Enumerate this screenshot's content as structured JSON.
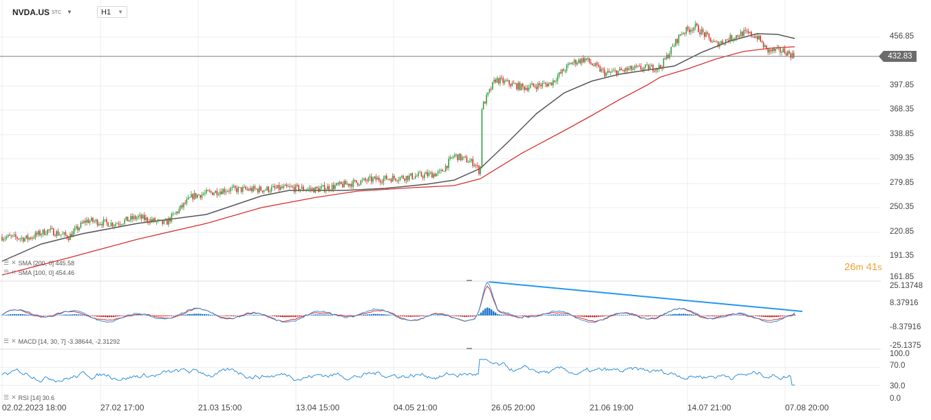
{
  "header": {
    "symbol": "NVDA.US",
    "symbol_suffix": "STC",
    "timeframe": "H1"
  },
  "indicators": {
    "sma200_label": "SMA [200, 0] 445.58",
    "sma100_label": "SMA [100, 0] 454.46",
    "macd_label": "MACD [14, 30, 7] -3.38644, -2.31292",
    "rsi_label": "RSI [14] 30.6"
  },
  "price_axis": [
    "456.85",
    "397.85",
    "368.35",
    "338.85",
    "309.35",
    "279.85",
    "250.35",
    "220.85",
    "191.35",
    "161.85"
  ],
  "macd_axis": [
    "25.13748",
    "8.37916",
    "-8.37916",
    "-25.1375"
  ],
  "rsi_axis": [
    "100.0",
    "70.0",
    "30.0",
    "0.0"
  ],
  "time_axis": [
    "02.02.2023  18:00",
    "27.02  17:00",
    "21.03  15:00",
    "13.04  15:00",
    "04.05  21:00",
    "26.05  20:00",
    "21.06  19:00",
    "14.07  21:00",
    "07.08  20:00"
  ],
  "current_price": "432.83",
  "countdown": {
    "minutes": "26",
    "m_unit": "m",
    "seconds": "41",
    "s_unit": "s"
  },
  "colors": {
    "up_candle": "#2e9e3e",
    "down_candle": "#d93030",
    "sma100": "#555555",
    "sma200": "#d93030",
    "macd_line": "#3a8fd6",
    "signal_line": "#d93030",
    "trendline": "#2196f3",
    "rsi": "#2f8fd8"
  },
  "chart_data": [
    {
      "type": "candlestick",
      "name": "NVDA.US H1",
      "x": [
        "02.02.2023 18:00",
        "27.02 17:00",
        "21.03 15:00",
        "13.04 15:00",
        "04.05 21:00",
        "26.05 20:00",
        "21.06 19:00",
        "14.07 21:00",
        "07.08 20:00"
      ],
      "close": [
        212,
        232,
        262,
        273,
        287,
        385,
        418,
        462,
        432.83
      ],
      "sma100": [
        180,
        210,
        240,
        270,
        280,
        350,
        420,
        445,
        454.46
      ],
      "sma200": [
        165,
        195,
        220,
        255,
        272,
        300,
        380,
        433,
        445.58
      ],
      "ylim": [
        161.85,
        480
      ]
    },
    {
      "type": "line",
      "name": "MACD [14, 30, 7]",
      "ylim": [
        -25.1375,
        25.13748
      ],
      "trendline": [
        [
          20,
          1.0
        ],
        [
          45,
          0.2
        ]
      ]
    },
    {
      "type": "line",
      "name": "RSI [14]",
      "ylim": [
        0,
        100
      ],
      "last": 30.6
    }
  ]
}
